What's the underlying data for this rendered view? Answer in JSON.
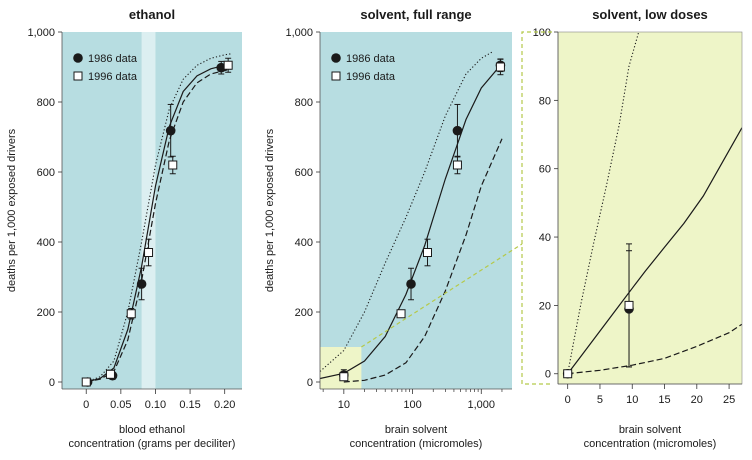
{
  "colors": {
    "plot_bg": "#b7dde1",
    "lowdose_bg": "#eef5c8",
    "band": "#dceff1",
    "link": "#b5c94a",
    "ink": "#1a1a1a"
  },
  "chart_data": [
    {
      "type": "scatter",
      "title": "ethanol",
      "xlabel": "blood ethanol",
      "xlabel2": "concentration (grams per deciliter)",
      "ylabel": "deaths per 1,000 exposed drivers",
      "xlim": [
        -0.035,
        0.225
      ],
      "ylim": [
        -20,
        1000
      ],
      "xscale": "linear",
      "x_ticks": [
        0,
        0.05,
        0.1,
        0.15,
        0.2
      ],
      "x_tick_labels": [
        "0",
        "0.05",
        "0.10",
        "0.15",
        "0.20"
      ],
      "y_ticks": [
        0,
        200,
        400,
        600,
        800,
        1000
      ],
      "y_tick_labels": [
        "0",
        "200",
        "400",
        "600",
        "800",
        "1,000"
      ],
      "legend": [
        "1986 data",
        "1996 data"
      ],
      "legend_position": "top-left",
      "shaded_band": [
        0.08,
        0.1
      ],
      "series": [
        {
          "name": "1986 data",
          "marker": "filled-circle",
          "x": [
            0.002,
            0.038,
            0.08,
            0.122,
            0.195
          ],
          "y": [
            0,
            18,
            280,
            718,
            898
          ],
          "err": [
            0,
            10,
            45,
            75,
            18
          ]
        },
        {
          "name": "1996 data",
          "marker": "open-square",
          "x": [
            0.0,
            0.035,
            0.065,
            0.09,
            0.125,
            0.205
          ],
          "y": [
            0,
            22,
            195,
            370,
            620,
            905
          ],
          "err": [
            0,
            12,
            15,
            38,
            25,
            20
          ]
        }
      ],
      "fits": [
        {
          "style": "solid",
          "x": [
            0,
            0.02,
            0.04,
            0.06,
            0.08,
            0.1,
            0.12,
            0.14,
            0.16,
            0.18,
            0.2,
            0.21
          ],
          "y": [
            0,
            10,
            40,
            150,
            330,
            560,
            730,
            830,
            875,
            895,
            905,
            908
          ]
        },
        {
          "style": "dashed",
          "x": [
            0,
            0.02,
            0.04,
            0.06,
            0.08,
            0.1,
            0.12,
            0.14,
            0.16,
            0.18,
            0.2,
            0.21
          ],
          "y": [
            0,
            8,
            30,
            120,
            290,
            510,
            690,
            800,
            855,
            880,
            890,
            895
          ]
        },
        {
          "style": "dotted",
          "x": [
            0,
            0.02,
            0.04,
            0.06,
            0.08,
            0.1,
            0.12,
            0.14,
            0.16,
            0.18,
            0.2,
            0.21
          ],
          "y": [
            0,
            15,
            60,
            200,
            400,
            620,
            780,
            865,
            905,
            925,
            935,
            938
          ]
        }
      ]
    },
    {
      "type": "scatter",
      "title": "solvent, full range",
      "xlabel": "brain solvent",
      "xlabel2": "concentration (micromoles)",
      "ylabel": "deaths per 1,000 exposed drivers",
      "xlim": [
        4.5,
        2800
      ],
      "ylim": [
        -20,
        1000
      ],
      "xscale": "log",
      "x_ticks": [
        10,
        100,
        1000
      ],
      "x_tick_labels": [
        "10",
        "100",
        "1,000"
      ],
      "x_minor_ticks": [
        5,
        20,
        30,
        40,
        50,
        60,
        70,
        80,
        90,
        200,
        300,
        400,
        500,
        600,
        700,
        800,
        900,
        2000
      ],
      "y_ticks": [
        0,
        200,
        400,
        600,
        800,
        1000
      ],
      "y_tick_labels": [
        "0",
        "200",
        "400",
        "600",
        "800",
        "1,000"
      ],
      "legend": [
        "1986 data",
        "1996 data"
      ],
      "legend_position": "top-left",
      "inset_box": {
        "x": [
          4.5,
          18
        ],
        "y": [
          -20,
          100
        ]
      },
      "series": [
        {
          "name": "1986 data",
          "marker": "filled-circle",
          "x": [
            10,
            95,
            450,
            1900
          ],
          "y": [
            20,
            280,
            718,
            905
          ],
          "err": [
            15,
            45,
            75,
            18
          ]
        },
        {
          "name": "1996 data",
          "marker": "open-square",
          "x": [
            10,
            68,
            165,
            450,
            1900
          ],
          "y": [
            15,
            195,
            370,
            620,
            900
          ],
          "err": [
            10,
            10,
            38,
            25,
            22
          ]
        }
      ],
      "fits": [
        {
          "style": "solid",
          "x": [
            4.5,
            10,
            20,
            40,
            80,
            150,
            300,
            600,
            1000,
            2000
          ],
          "y": [
            10,
            25,
            60,
            130,
            250,
            390,
            580,
            750,
            840,
            910
          ]
        },
        {
          "style": "dashed",
          "x": [
            10,
            20,
            40,
            80,
            150,
            300,
            600,
            1000,
            2000
          ],
          "y": [
            0,
            5,
            20,
            55,
            130,
            260,
            420,
            560,
            695
          ]
        },
        {
          "style": "dotted",
          "x": [
            4.5,
            10,
            20,
            40,
            80,
            150,
            300,
            600,
            1000,
            1500
          ],
          "y": [
            30,
            90,
            200,
            340,
            470,
            600,
            760,
            880,
            925,
            945
          ]
        }
      ]
    },
    {
      "type": "scatter",
      "title": "solvent, low doses",
      "xlabel": "brain solvent",
      "xlabel2": "concentration (micromoles)",
      "ylabel": "",
      "xlim": [
        -1.5,
        27
      ],
      "ylim": [
        -3,
        100
      ],
      "xscale": "linear",
      "x_ticks": [
        0,
        5,
        10,
        15,
        20,
        25
      ],
      "x_tick_labels": [
        "0",
        "5",
        "10",
        "15",
        "20",
        "25"
      ],
      "y_ticks": [
        0,
        20,
        40,
        60,
        80,
        100
      ],
      "y_tick_labels": [
        "0",
        "20",
        "40",
        "60",
        "80",
        "100"
      ],
      "series": [
        {
          "name": "1986 data",
          "marker": "filled-circle",
          "x": [
            0,
            9.5
          ],
          "y": [
            0,
            19
          ],
          "err": [
            0,
            17
          ]
        },
        {
          "name": "1996 data",
          "marker": "open-square",
          "x": [
            0,
            9.5
          ],
          "y": [
            0,
            20
          ],
          "err": [
            0,
            18
          ]
        }
      ],
      "fits": [
        {
          "style": "solid",
          "x": [
            0,
            2,
            4,
            6,
            8,
            10,
            12,
            15,
            18,
            21,
            24,
            27
          ],
          "y": [
            0,
            5,
            10,
            15,
            20,
            25,
            30,
            37,
            44,
            52,
            62,
            72
          ]
        },
        {
          "style": "dashed",
          "x": [
            0,
            5,
            10,
            15,
            20,
            25,
            27
          ],
          "y": [
            0,
            1,
            2.5,
            4.5,
            8,
            12,
            14.5
          ]
        },
        {
          "style": "dotted",
          "x": [
            0,
            1,
            2,
            4,
            6,
            8,
            9.5,
            11
          ],
          "y": [
            0,
            10,
            20,
            38,
            55,
            73,
            90,
            100
          ]
        }
      ]
    }
  ]
}
